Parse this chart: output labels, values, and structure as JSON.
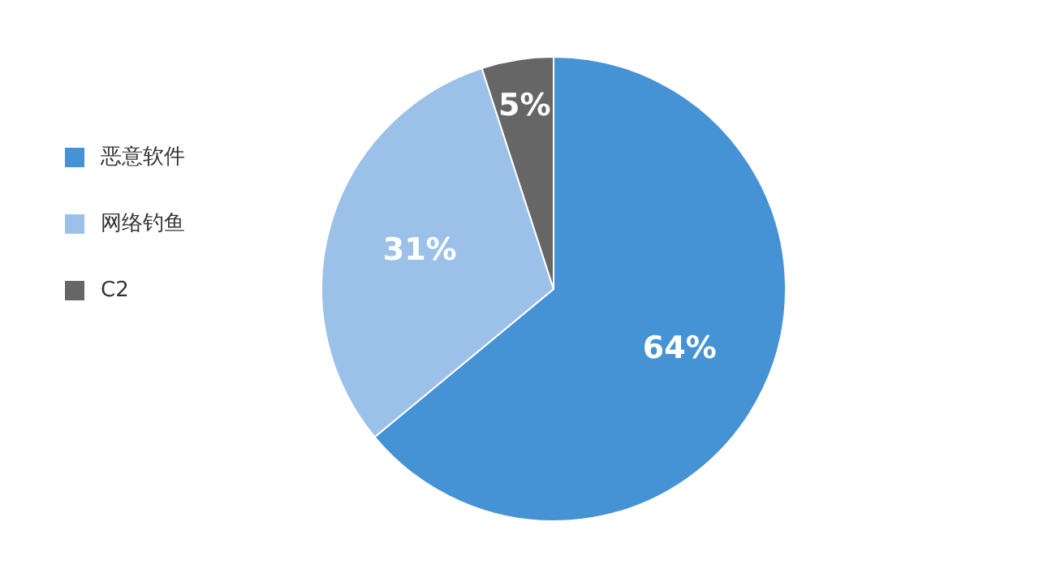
{
  "chart_data": {
    "type": "pie",
    "categories": [
      "恶意软件",
      "网络钓鱼",
      "C2"
    ],
    "values": [
      64,
      31,
      5
    ],
    "colors": [
      "#4592d5",
      "#9cc1e8",
      "#666666"
    ],
    "value_labels": [
      "64%",
      "31%",
      "5%"
    ],
    "legend": "left"
  }
}
